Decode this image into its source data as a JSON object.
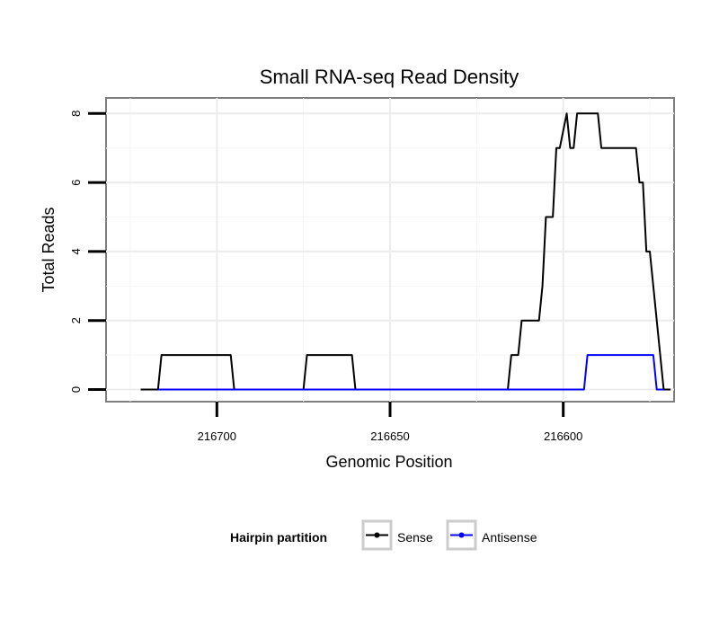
{
  "chart_data": {
    "type": "line",
    "title": "Small RNA-seq Read Density",
    "xlabel": "Genomic Position",
    "ylabel": "Total Reads",
    "xlim": [
      216732,
      216568
    ],
    "ylim": [
      -0.35,
      8.45
    ],
    "x_reversed": true,
    "x_ticks": [
      216700,
      216650,
      216600
    ],
    "x_tick_labels": [
      "216700",
      "216650",
      "216600"
    ],
    "y_ticks": [
      0,
      2,
      4,
      6,
      8
    ],
    "y_tick_labels": [
      "0",
      "2",
      "4",
      "6",
      "8"
    ],
    "grid": true,
    "legend": {
      "title": "Hairpin partition",
      "position": "bottom"
    },
    "series": [
      {
        "name": "Sense",
        "color": "#000000",
        "points": [
          [
            216722,
            0
          ],
          [
            216717,
            0
          ],
          [
            216716,
            1
          ],
          [
            216696,
            1
          ],
          [
            216695,
            0
          ],
          [
            216675,
            0
          ],
          [
            216674,
            1
          ],
          [
            216661,
            1
          ],
          [
            216660,
            0
          ],
          [
            216616,
            0
          ],
          [
            216615,
            1
          ],
          [
            216613,
            1
          ],
          [
            216612,
            2
          ],
          [
            216607,
            2
          ],
          [
            216606,
            3
          ],
          [
            216605,
            5
          ],
          [
            216603,
            5
          ],
          [
            216602,
            7
          ],
          [
            216601,
            7
          ],
          [
            216599,
            8
          ],
          [
            216598,
            7
          ],
          [
            216597,
            7
          ],
          [
            216596,
            8
          ],
          [
            216590,
            8
          ],
          [
            216589,
            7
          ],
          [
            216579,
            7
          ],
          [
            216578,
            6
          ],
          [
            216577,
            6
          ],
          [
            216576,
            4
          ],
          [
            216575,
            4
          ],
          [
            216571,
            0
          ],
          [
            216569,
            0
          ]
        ]
      },
      {
        "name": "Antisense",
        "color": "#0000ff",
        "points": [
          [
            216717,
            0
          ],
          [
            216695,
            0
          ],
          [
            216674,
            0
          ],
          [
            216660,
            0
          ],
          [
            216594,
            0
          ],
          [
            216593,
            1
          ],
          [
            216574,
            1
          ],
          [
            216573,
            0
          ],
          [
            216571,
            0
          ]
        ]
      }
    ]
  }
}
